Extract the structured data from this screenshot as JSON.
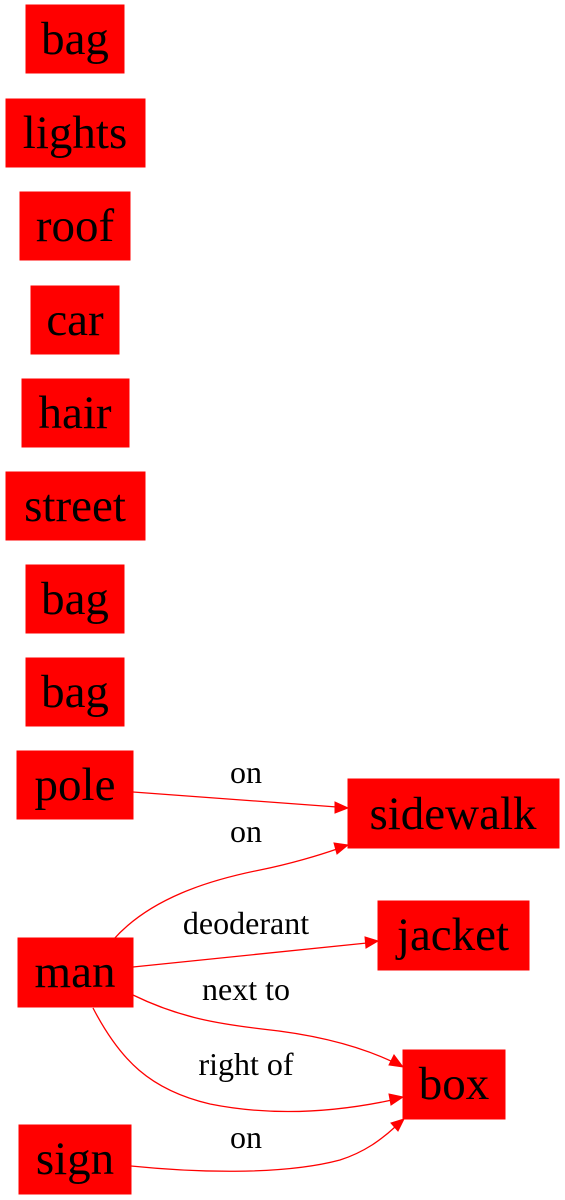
{
  "colors": {
    "node_fill": "#ff0000",
    "edge": "#ff0000",
    "text": "#000000",
    "background": "#ffffff"
  },
  "nodes": {
    "bag_1": "bag",
    "lights": "lights",
    "roof": "roof",
    "car": "car",
    "hair": "hair",
    "street": "street",
    "bag_2": "bag",
    "bag_3": "bag",
    "pole": "pole",
    "sidewalk": "sidewalk",
    "man": "man",
    "jacket": "jacket",
    "box": "box",
    "sign": "sign"
  },
  "edges": {
    "pole_sidewalk": {
      "from": "pole",
      "to": "sidewalk",
      "label": "on"
    },
    "man_sidewalk": {
      "from": "man",
      "to": "sidewalk",
      "label": "on"
    },
    "man_jacket": {
      "from": "man",
      "to": "jacket",
      "label": "deoderant"
    },
    "man_box_next": {
      "from": "man",
      "to": "box",
      "label": "next to"
    },
    "man_box_right": {
      "from": "man",
      "to": "box",
      "label": "right of"
    },
    "sign_box": {
      "from": "sign",
      "to": "box",
      "label": "on"
    }
  }
}
